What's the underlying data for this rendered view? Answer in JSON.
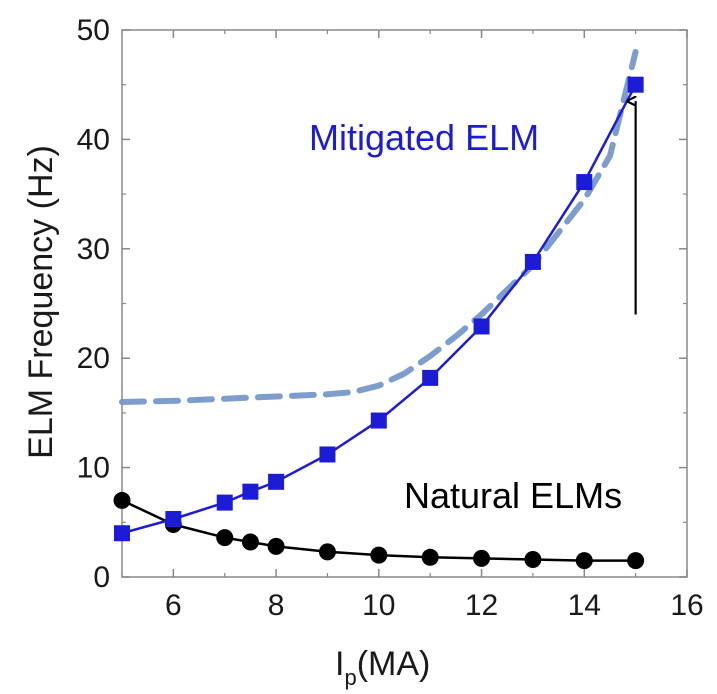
{
  "chart_data": {
    "type": "line",
    "title": "",
    "xlabel": "I",
    "xlabel_subscript": "p",
    "xlabel_unit": "(MA)",
    "ylabel": "ELM Frequency (Hz)",
    "xlim": [
      5,
      16
    ],
    "ylim": [
      0,
      50
    ],
    "xticks": [
      "6",
      "8",
      "10",
      "12",
      "14",
      "16"
    ],
    "yticks": [
      "0",
      "10",
      "20",
      "30",
      "40",
      "50"
    ],
    "grid": false,
    "series": [
      {
        "color": "#1c1cd6",
        "marker": "square",
        "x": [
          5,
          6,
          7,
          7.5,
          8,
          9,
          10,
          11,
          12,
          13,
          14,
          15
        ],
        "y": [
          4,
          5.3,
          6.8,
          7.8,
          8.7,
          11.2,
          14.3,
          18.2,
          22.9,
          28.8,
          36.1,
          45
        ]
      },
      {
        "color": "#000000",
        "marker": "circle",
        "x": [
          5,
          6,
          7,
          7.5,
          8,
          9,
          10,
          11,
          12,
          13,
          14,
          15
        ],
        "y": [
          7,
          4.8,
          3.6,
          3.2,
          2.8,
          2.3,
          2.0,
          1.8,
          1.7,
          1.6,
          1.5,
          1.5
        ]
      },
      {
        "color": "#6f93c6",
        "marker": "none",
        "style": "dashed",
        "x": [
          5,
          6,
          7,
          8,
          9,
          9.5,
          10,
          10.5,
          11,
          11.5,
          12,
          13,
          14,
          14.5,
          15
        ],
        "y": [
          16,
          16.1,
          16.3,
          16.5,
          16.7,
          16.9,
          17.5,
          18.6,
          20.2,
          22,
          24,
          28.5,
          34.5,
          38.5,
          48
        ]
      }
    ],
    "annotations": [
      {
        "text": "Mitigated ELM",
        "color": "#1c1cd6"
      },
      {
        "text": "Natural ELMs",
        "color": "#000000"
      }
    ],
    "arrow": {
      "x": 15,
      "y_from": 24,
      "y_to": 43.5,
      "color": "#000000"
    }
  }
}
